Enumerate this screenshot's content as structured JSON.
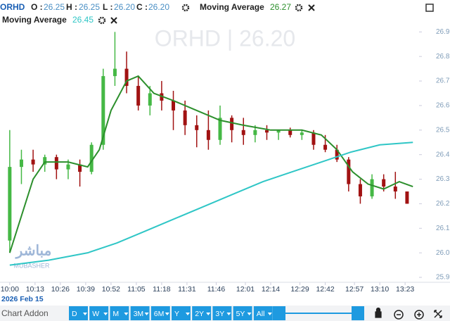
{
  "chart_data": {
    "type": "candlestick",
    "symbol": "ORHD",
    "ohlc_header": {
      "labels": [
        "O :",
        "H :",
        "L :",
        "C :"
      ],
      "values": [
        "26.25",
        "26.25",
        "26.20",
        "26.20"
      ]
    },
    "watermark": "ORHD  |  26.20",
    "date_label": "2026 Feb 15",
    "xlim": [
      "09:55",
      "13:28"
    ],
    "xticks": [
      "10:00",
      "10:13",
      "10:26",
      "10:39",
      "10:52",
      "11:05",
      "11:18",
      "11:31",
      "11:46",
      "12:01",
      "12:14",
      "12:29",
      "12:42",
      "12:57",
      "13:10",
      "13:23"
    ],
    "ylim": [
      25.88,
      27.03
    ],
    "yticks": [
      25.9,
      {
        "value": 26,
        "label": "26.0"
      },
      26.1,
      26.2,
      26.3,
      26.4,
      26.5,
      26.6,
      26.7,
      26.8,
      26.9
    ],
    "up_color": "#45b845",
    "down_color": "#a11212",
    "series": [
      {
        "name": "ORHD",
        "x": [
          "10:00",
          "10:06",
          "10:12",
          "10:18",
          "10:24",
          "10:30",
          "10:36",
          "10:42",
          "10:48",
          "10:54",
          "11:00",
          "11:06",
          "11:12",
          "11:18",
          "11:24",
          "11:30",
          "11:36",
          "11:42",
          "11:48",
          "11:54",
          "12:00",
          "12:06",
          "12:12",
          "12:18",
          "12:24",
          "12:30",
          "12:36",
          "12:42",
          "12:48",
          "12:54",
          "13:00",
          "13:06",
          "13:12",
          "13:18",
          "13:24"
        ],
        "open": [
          26.05,
          26.35,
          26.38,
          26.36,
          26.39,
          26.34,
          26.36,
          26.33,
          26.44,
          26.72,
          26.75,
          26.68,
          26.6,
          26.65,
          26.62,
          26.58,
          26.52,
          26.5,
          26.46,
          26.55,
          26.5,
          26.48,
          26.5,
          26.49,
          26.5,
          26.48,
          26.49,
          26.44,
          26.42,
          26.38,
          26.28,
          26.23,
          26.3,
          26.27,
          26.25
        ],
        "high": [
          26.5,
          26.42,
          26.42,
          26.4,
          26.4,
          26.38,
          26.38,
          26.45,
          26.75,
          26.9,
          26.82,
          26.72,
          26.68,
          26.7,
          26.66,
          26.62,
          26.56,
          26.58,
          26.6,
          26.56,
          26.55,
          26.52,
          26.52,
          26.5,
          26.51,
          26.5,
          26.5,
          26.48,
          26.44,
          26.39,
          26.3,
          26.32,
          26.32,
          26.33,
          26.25
        ],
        "low": [
          26.0,
          26.28,
          26.33,
          26.33,
          26.3,
          26.3,
          26.27,
          26.32,
          26.42,
          26.68,
          26.65,
          26.58,
          26.56,
          26.58,
          26.5,
          26.48,
          26.43,
          26.42,
          26.44,
          26.45,
          26.44,
          26.45,
          26.46,
          26.46,
          26.47,
          26.46,
          26.42,
          26.41,
          26.37,
          26.25,
          26.2,
          26.22,
          26.25,
          26.22,
          26.2
        ],
        "close": [
          26.35,
          26.38,
          26.36,
          26.39,
          26.34,
          26.36,
          26.33,
          26.44,
          26.72,
          26.75,
          26.68,
          26.6,
          26.65,
          26.62,
          26.58,
          26.52,
          26.5,
          26.46,
          26.55,
          26.5,
          26.48,
          26.5,
          26.49,
          26.5,
          26.48,
          26.49,
          26.44,
          26.42,
          26.38,
          26.28,
          26.23,
          26.3,
          26.27,
          26.25,
          26.2
        ]
      },
      {
        "name": "Moving Average",
        "color": "#2c8f2c",
        "current": "26.27",
        "x": [
          "10:00",
          "10:06",
          "10:12",
          "10:18",
          "10:30",
          "10:40",
          "10:46",
          "10:52",
          "11:00",
          "11:06",
          "11:14",
          "11:24",
          "11:36",
          "11:48",
          "12:00",
          "12:14",
          "12:30",
          "12:40",
          "12:48",
          "12:56",
          "13:04",
          "13:12",
          "13:20",
          "13:27"
        ],
        "values": [
          26.0,
          26.15,
          26.3,
          26.37,
          26.37,
          26.35,
          26.42,
          26.58,
          26.7,
          26.72,
          26.65,
          26.62,
          26.58,
          26.54,
          26.52,
          26.5,
          26.5,
          26.48,
          26.42,
          26.33,
          26.28,
          26.26,
          26.29,
          26.27
        ]
      },
      {
        "name": "Moving Average",
        "color": "#2fc6c6",
        "current": "26.45",
        "x": [
          "10:00",
          "10:20",
          "10:40",
          "10:55",
          "11:10",
          "11:25",
          "11:40",
          "11:55",
          "12:10",
          "12:25",
          "12:40",
          "12:55",
          "13:10",
          "13:27"
        ],
        "values": [
          25.95,
          25.97,
          26.0,
          26.04,
          26.09,
          26.14,
          26.19,
          26.24,
          26.29,
          26.33,
          26.37,
          26.41,
          26.44,
          26.45
        ]
      }
    ]
  },
  "logo": {
    "arabic": "مباشر",
    "latin": "MUBASHER"
  },
  "toolbar": {
    "addon": "Chart Addon",
    "ranges": [
      "D",
      "W",
      "M",
      "3M",
      "6M",
      "Y",
      "2Y",
      "3Y",
      "5Y",
      "All"
    ]
  }
}
